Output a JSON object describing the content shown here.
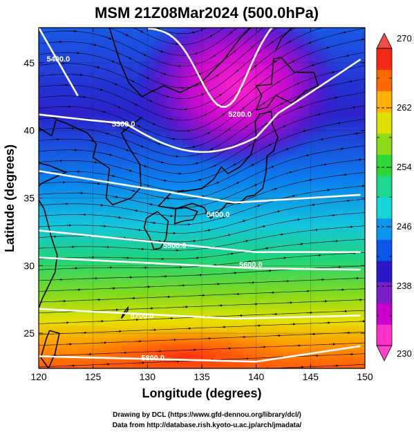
{
  "chart_data": {
    "type": "heatmap",
    "title": "MSM 21Z08Mar2024 (500.0hPa)",
    "xlabel": "Longitude (degrees)",
    "ylabel": "Latitude  (degrees)",
    "xlim": [
      120,
      150
    ],
    "ylim": [
      22.4,
      47.6
    ],
    "xticks": [
      120,
      125,
      130,
      135,
      140,
      145,
      150
    ],
    "yticks": [
      25,
      30,
      35,
      40,
      45
    ],
    "colorbar": {
      "min": 230,
      "max": 270,
      "ticks": [
        230,
        238,
        246,
        254,
        262,
        270
      ],
      "extend": "both",
      "colors": [
        "#ff33cc",
        "#cc00cc",
        "#7a1fc9",
        "#2b18c8",
        "#0b55ea",
        "#0c96f0",
        "#14d6da",
        "#1bd890",
        "#2bd636",
        "#8ddc1c",
        "#e0e000",
        "#ffb000",
        "#ff6a00",
        "#f52a14"
      ]
    },
    "temperature_gradient": [
      {
        "lat": 47,
        "value": 240
      },
      {
        "lat": 42,
        "value": 238
      },
      {
        "lat": 38,
        "value": 240
      },
      {
        "lat": 35,
        "value": 245
      },
      {
        "lat": 32,
        "value": 250
      },
      {
        "lat": 29,
        "value": 255
      },
      {
        "lat": 26,
        "value": 260
      },
      {
        "lat": 23,
        "value": 266
      }
    ],
    "cold_core": {
      "lon": 137.5,
      "lat": 43.5,
      "value": 230
    },
    "height_contours": [
      {
        "label": "5400.0",
        "lon": 121.8,
        "lat": 45.3
      },
      {
        "label": "5300.0",
        "lon": 127.8,
        "lat": 40.5
      },
      {
        "label": "5200.0",
        "lon": 138.5,
        "lat": 41.2
      },
      {
        "label": "5400.0",
        "lon": 136.5,
        "lat": 33.8
      },
      {
        "label": "5500.0",
        "lon": 132.5,
        "lat": 31.5
      },
      {
        "label": "5600.0",
        "lon": 139.5,
        "lat": 30.1
      },
      {
        "label": "5700.0",
        "lon": 129.5,
        "lat": 26.3
      },
      {
        "label": "5800.0",
        "lon": 130.5,
        "lat": 23.2
      }
    ]
  },
  "credits": {
    "line1": "Drawing by DCL (https://www.gfd-dennou.org/library/dcl/)",
    "line2": "Data from http://database.rish.kyoto-u.ac.jp/arch/jmadata/"
  }
}
